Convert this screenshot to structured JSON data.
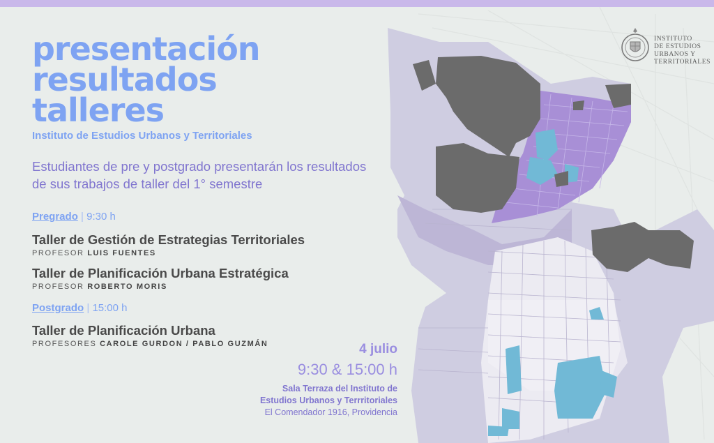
{
  "title": {
    "line1": "presentación",
    "line2": "resultados",
    "line3": "talleres"
  },
  "subtitle": "Instituto de Estudios Urbanos y Territoriales",
  "lead": "Estudiantes de pre y postgrado presentarán los resultados de sus trabajos de taller del 1° semestre",
  "pregrado": {
    "label": "Pregrado",
    "separator": "|",
    "time": "9:30 h",
    "courses": [
      {
        "name": "Taller de Gestión de Estrategias Territoriales",
        "prof_prefix": "PROFESOR",
        "prof_name": "LUIS FUENTES"
      },
      {
        "name": "Taller de Planificación Urbana Estratégica",
        "prof_prefix": "PROFESOR",
        "prof_name": "ROBERTO MORIS"
      }
    ]
  },
  "postgrado": {
    "label": "Postgrado",
    "separator": "|",
    "time": "15:00 h",
    "courses": [
      {
        "name": "Taller de Planificación Urbana",
        "prof_prefix": "PROFESORES",
        "prof_name": "CAROLE GURDON / PABLO GUZMÁN"
      }
    ]
  },
  "event": {
    "date": "4 julio",
    "times": "9:30 & 15:00 h",
    "venue_line1": "Sala Terraza del Instituto de",
    "venue_line2": "Estudios Urbanos y Terrritoriales",
    "address": "El Comendador 1916, Providencia"
  },
  "institute_logo": {
    "line1": "INSTITUTO",
    "line2": "DE ESTUDIOS",
    "line3": "URBANOS Y",
    "line4": "TERRITORIALES"
  },
  "colors": {
    "top_bar": "#c9b8ea",
    "title": "#7ea3f2",
    "lead": "#8075cf",
    "map_dark": "#6b6b6b",
    "map_purple": "#a88fd6",
    "map_lilac": "#c2bdd9",
    "map_cyan": "#71b9d6"
  }
}
